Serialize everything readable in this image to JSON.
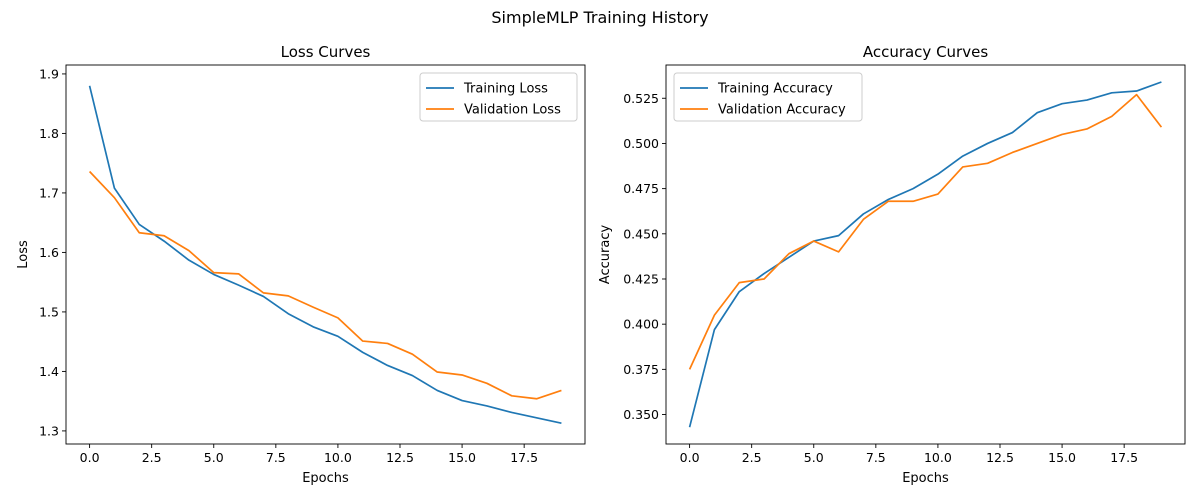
{
  "figure": {
    "suptitle": "SimpleMLP Training History"
  },
  "colors": {
    "training": "#1f77b4",
    "validation": "#ff7f0e"
  },
  "chart_data": [
    {
      "type": "line",
      "title": "Loss Curves",
      "xlabel": "Epochs",
      "ylabel": "Loss",
      "xlim": [
        -0.95,
        19.95
      ],
      "ylim": [
        1.278,
        1.915
      ],
      "xticks": [
        0.0,
        2.5,
        5.0,
        7.5,
        10.0,
        12.5,
        15.0,
        17.5
      ],
      "xtick_labels": [
        "0.0",
        "2.5",
        "5.0",
        "7.5",
        "10.0",
        "12.5",
        "15.0",
        "17.5"
      ],
      "yticks": [
        1.3,
        1.4,
        1.5,
        1.6,
        1.7,
        1.8,
        1.9
      ],
      "ytick_labels": [
        "1.3",
        "1.4",
        "1.5",
        "1.6",
        "1.7",
        "1.8",
        "1.9"
      ],
      "legend": "top-right",
      "grid": false,
      "x": [
        0,
        1,
        2,
        3,
        4,
        5,
        6,
        7,
        8,
        9,
        10,
        11,
        12,
        13,
        14,
        15,
        16,
        17,
        18,
        19
      ],
      "series": [
        {
          "name": "Training Loss",
          "values": [
            1.88,
            1.708,
            1.647,
            1.619,
            1.587,
            1.563,
            1.545,
            1.526,
            1.497,
            1.475,
            1.459,
            1.432,
            1.41,
            1.393,
            1.368,
            1.351,
            1.342,
            1.331,
            1.322,
            1.313
          ]
        },
        {
          "name": "Validation Loss",
          "values": [
            1.736,
            1.692,
            1.633,
            1.628,
            1.603,
            1.566,
            1.564,
            1.532,
            1.527,
            1.508,
            1.49,
            1.451,
            1.447,
            1.429,
            1.399,
            1.394,
            1.38,
            1.359,
            1.354,
            1.368
          ]
        }
      ]
    },
    {
      "type": "line",
      "title": "Accuracy Curves",
      "xlabel": "Epochs",
      "ylabel": "Accuracy",
      "xlim": [
        -0.95,
        19.95
      ],
      "ylim": [
        0.3337,
        0.5434
      ],
      "xticks": [
        0.0,
        2.5,
        5.0,
        7.5,
        10.0,
        12.5,
        15.0,
        17.5
      ],
      "xtick_labels": [
        "0.0",
        "2.5",
        "5.0",
        "7.5",
        "10.0",
        "12.5",
        "15.0",
        "17.5"
      ],
      "yticks": [
        0.35,
        0.375,
        0.4,
        0.425,
        0.45,
        0.475,
        0.5,
        0.525
      ],
      "ytick_labels": [
        "0.350",
        "0.375",
        "0.400",
        "0.425",
        "0.450",
        "0.475",
        "0.500",
        "0.525"
      ],
      "legend": "top-left",
      "grid": false,
      "x": [
        0,
        1,
        2,
        3,
        4,
        5,
        6,
        7,
        8,
        9,
        10,
        11,
        12,
        13,
        14,
        15,
        16,
        17,
        18,
        19
      ],
      "series": [
        {
          "name": "Training Accuracy",
          "values": [
            0.343,
            0.397,
            0.418,
            0.428,
            0.437,
            0.446,
            0.449,
            0.461,
            0.469,
            0.475,
            0.483,
            0.493,
            0.5,
            0.506,
            0.517,
            0.522,
            0.524,
            0.528,
            0.529,
            0.534
          ]
        },
        {
          "name": "Validation Accuracy",
          "values": [
            0.375,
            0.405,
            0.423,
            0.425,
            0.439,
            0.446,
            0.44,
            0.458,
            0.468,
            0.468,
            0.472,
            0.487,
            0.489,
            0.495,
            0.5,
            0.505,
            0.508,
            0.515,
            0.527,
            0.509
          ]
        }
      ]
    }
  ]
}
